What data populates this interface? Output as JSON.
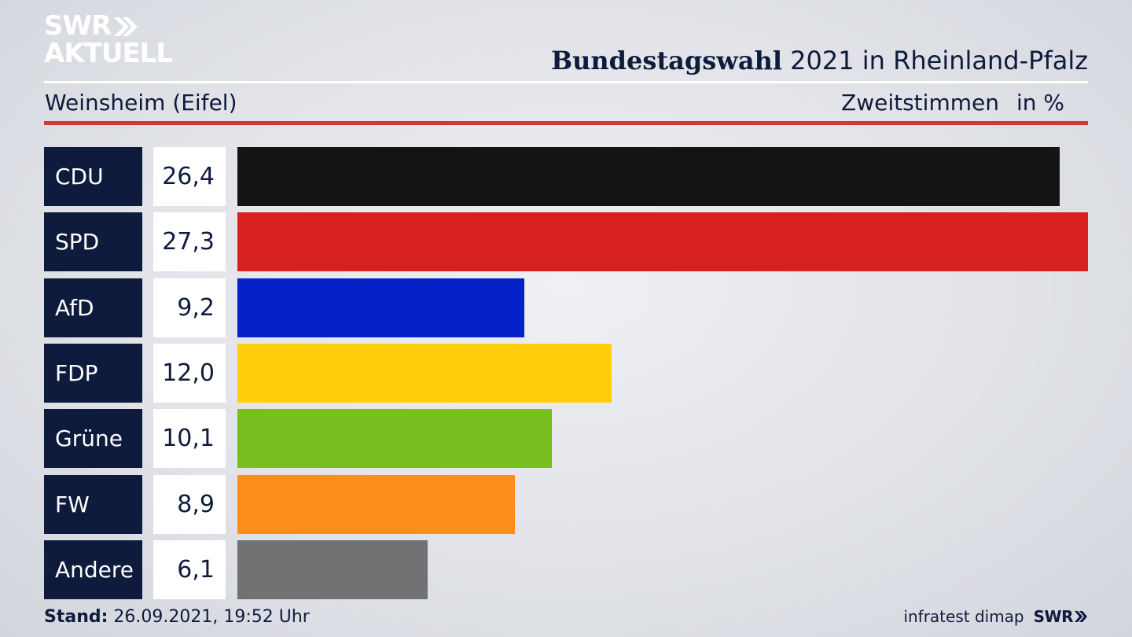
{
  "branding": {
    "logo_line1": "SWR",
    "logo_line2": "AKTUELL",
    "source": "infratest dimap",
    "footer_logo": "SWR"
  },
  "header": {
    "title_bold": "Bundestagswahl",
    "title_rest": " 2021 in Rheinland-Pfalz",
    "location": "Weinsheim (Eifel)",
    "measure": "Zweitstimmen",
    "unit": "in %"
  },
  "footer": {
    "stand_label": "Stand:",
    "stand_value": " 26.09.2021, 19:52 Uhr"
  },
  "colors": {
    "navy": "#0e1b3c",
    "accent_red": "#cf3a33"
  },
  "chart_data": {
    "type": "bar",
    "orientation": "horizontal",
    "categories": [
      "CDU",
      "SPD",
      "AfD",
      "FDP",
      "Grüne",
      "FW",
      "Andere"
    ],
    "values": [
      26.4,
      27.3,
      9.2,
      12.0,
      10.1,
      8.9,
      6.1
    ],
    "value_labels": [
      "26,4",
      "27,3",
      "9,2",
      "12,0",
      "10,1",
      "8,9",
      "6,1"
    ],
    "colors": [
      "#141414",
      "#d8201f",
      "#0522c8",
      "#fecd0b",
      "#78be1e",
      "#fe8d19",
      "#727274"
    ],
    "xlim": [
      0,
      27.3
    ]
  }
}
